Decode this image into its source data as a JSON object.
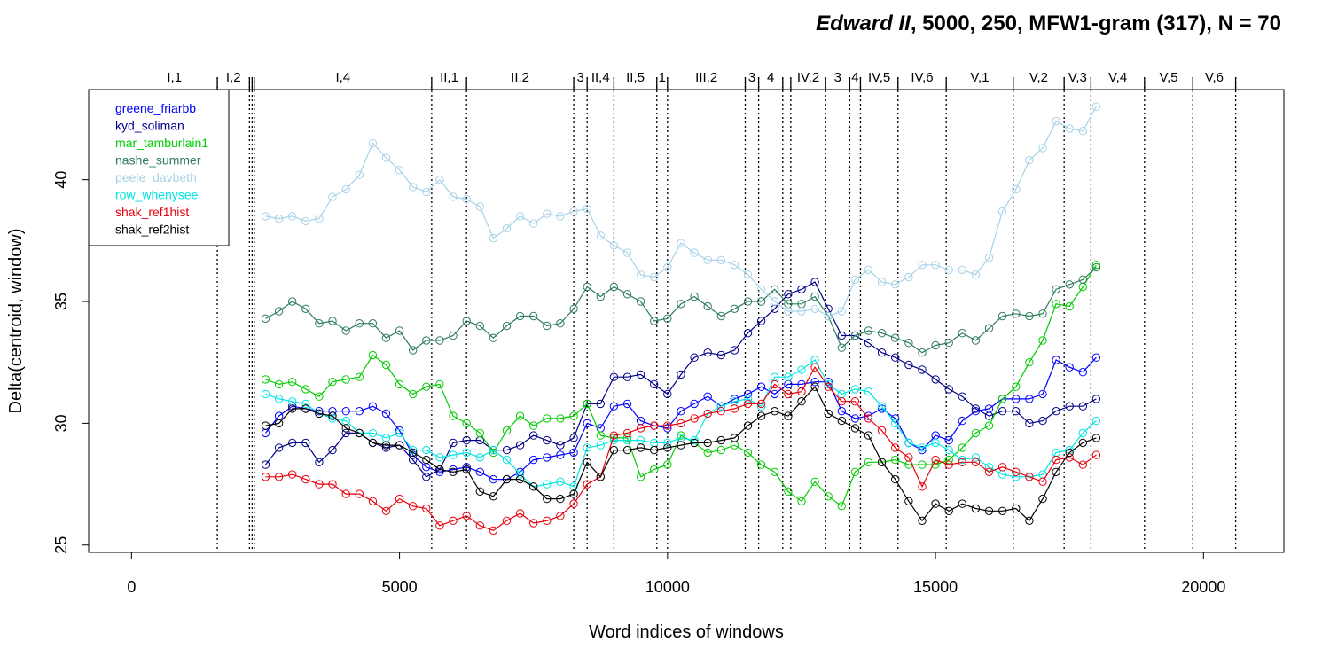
{
  "chart_data": {
    "type": "line",
    "title_italic": "Edward II",
    "title_rest": ", 5000, 250, MFW1-gram (317), N = 70",
    "xlabel": "Word indices of windows",
    "ylabel": "Delta(centroid, window)",
    "xlim": [
      -800,
      21500
    ],
    "ylim": [
      24.7,
      43.7
    ],
    "xticks": [
      0,
      5000,
      10000,
      15000,
      20000
    ],
    "yticks": [
      25,
      30,
      35,
      40
    ],
    "legend_position": "top-left",
    "scenes": [
      {
        "label": "I,1",
        "start": 0,
        "end": 1600
      },
      {
        "label": "I,2",
        "start": 1600,
        "end": 2200
      },
      {
        "label": "",
        "start": 2200,
        "end": 2250
      },
      {
        "label": "",
        "start": 2250,
        "end": 2290
      },
      {
        "label": "I,4",
        "start": 2290,
        "end": 5600
      },
      {
        "label": "II,1",
        "start": 5600,
        "end": 6250
      },
      {
        "label": "II,2",
        "start": 6250,
        "end": 8250
      },
      {
        "label": "3",
        "start": 8250,
        "end": 8500
      },
      {
        "label": "II,4",
        "start": 8500,
        "end": 9000
      },
      {
        "label": "II,5",
        "start": 9000,
        "end": 9800
      },
      {
        "label": "1",
        "start": 9800,
        "end": 10000
      },
      {
        "label": "III,2",
        "start": 10000,
        "end": 11450
      },
      {
        "label": "3",
        "start": 11450,
        "end": 11700
      },
      {
        "label": "4",
        "start": 11700,
        "end": 12150
      },
      {
        "label": "",
        "start": 12150,
        "end": 12300
      },
      {
        "label": "IV,2",
        "start": 12300,
        "end": 12950
      },
      {
        "label": "3",
        "start": 12950,
        "end": 13400
      },
      {
        "label": "4",
        "start": 13400,
        "end": 13600
      },
      {
        "label": "IV,5",
        "start": 13600,
        "end": 14300
      },
      {
        "label": "IV,6",
        "start": 14300,
        "end": 15200
      },
      {
        "label": "V,1",
        "start": 15200,
        "end": 16450
      },
      {
        "label": "V,2",
        "start": 16450,
        "end": 17400
      },
      {
        "label": "V,3",
        "start": 17400,
        "end": 17900
      },
      {
        "label": "V,4",
        "start": 17900,
        "end": 18900
      },
      {
        "label": "V,5",
        "start": 18900,
        "end": 19800
      },
      {
        "label": "V,6",
        "start": 19800,
        "end": 20600
      }
    ],
    "x": [
      2500,
      2750,
      3000,
      3250,
      3500,
      3750,
      4000,
      4250,
      4500,
      4750,
      5000,
      5250,
      5500,
      5750,
      6000,
      6250,
      6500,
      6750,
      7000,
      7250,
      7500,
      7750,
      8000,
      8250,
      8500,
      8750,
      9000,
      9250,
      9500,
      9750,
      10000,
      10250,
      10500,
      10750,
      11000,
      11250,
      11500,
      11750,
      12000,
      12250,
      12500,
      12750,
      13000,
      13250,
      13500,
      13750,
      14000,
      14250,
      14500,
      14750,
      15000,
      15250,
      15500,
      15750,
      16000,
      16250,
      16500,
      16750,
      17000,
      17250,
      17500,
      17750,
      18000
    ],
    "series": [
      {
        "name": "greene_friarbb",
        "color": "#0000FF",
        "values": [
          29.6,
          30.3,
          30.7,
          30.6,
          30.5,
          30.5,
          30.5,
          30.5,
          30.7,
          30.4,
          29.7,
          28.7,
          28.2,
          28.0,
          28.1,
          28.2,
          28.0,
          27.7,
          27.7,
          28.0,
          28.5,
          28.6,
          28.7,
          28.8,
          30.0,
          29.8,
          30.7,
          30.8,
          30.1,
          29.9,
          29.8,
          30.5,
          30.8,
          31.1,
          30.7,
          31.0,
          31.2,
          31.5,
          31.2,
          31.6,
          31.6,
          31.7,
          31.7,
          30.5,
          30.2,
          30.3,
          30.6,
          30.2,
          29.2,
          28.9,
          29.5,
          29.3,
          30.1,
          30.5,
          30.6,
          31.0,
          31.0,
          31.0,
          31.2,
          32.6,
          32.3,
          32.1,
          32.7
        ]
      },
      {
        "name": "kyd_soliman",
        "color": "#00008B",
        "values": [
          28.3,
          29.0,
          29.2,
          29.2,
          28.4,
          28.9,
          29.6,
          29.6,
          29.2,
          29.0,
          29.1,
          28.5,
          27.8,
          28.1,
          29.2,
          29.3,
          29.3,
          28.9,
          28.9,
          29.1,
          29.5,
          29.3,
          29.1,
          29.4,
          30.8,
          30.8,
          31.9,
          31.9,
          32.0,
          31.6,
          31.2,
          32.0,
          32.7,
          32.9,
          32.8,
          33.0,
          33.7,
          34.2,
          34.7,
          35.3,
          35.5,
          35.8,
          34.7,
          33.6,
          33.6,
          33.3,
          32.9,
          32.7,
          32.4,
          32.2,
          31.8,
          31.4,
          31.1,
          30.6,
          30.3,
          30.5,
          30.5,
          30.0,
          30.1,
          30.5,
          30.7,
          30.7,
          31.0
        ]
      },
      {
        "name": "mar_tamburlain1",
        "color": "#00CC00",
        "values": [
          31.8,
          31.6,
          31.7,
          31.4,
          31.1,
          31.7,
          31.8,
          31.9,
          32.8,
          32.4,
          31.6,
          31.2,
          31.5,
          31.6,
          30.3,
          30.0,
          29.6,
          28.8,
          29.7,
          30.3,
          29.9,
          30.2,
          30.2,
          30.3,
          30.8,
          29.5,
          29.4,
          29.4,
          27.8,
          28.1,
          28.3,
          29.5,
          29.2,
          28.8,
          28.9,
          29.1,
          28.8,
          28.3,
          28.0,
          27.2,
          26.8,
          27.6,
          27.0,
          26.6,
          28.0,
          28.4,
          28.4,
          28.5,
          28.3,
          28.3,
          28.3,
          28.5,
          29.0,
          29.6,
          29.9,
          31.0,
          31.5,
          32.5,
          33.4,
          34.9,
          34.8,
          35.6,
          36.5
        ]
      },
      {
        "name": "nashe_summer",
        "color": "#2E7D5B",
        "values": [
          34.3,
          34.6,
          35.0,
          34.7,
          34.1,
          34.2,
          33.8,
          34.1,
          34.1,
          33.5,
          33.8,
          33.0,
          33.4,
          33.4,
          33.6,
          34.2,
          34.0,
          33.5,
          34.0,
          34.4,
          34.4,
          34.0,
          34.1,
          34.7,
          35.6,
          35.2,
          35.6,
          35.3,
          35.0,
          34.2,
          34.3,
          34.9,
          35.2,
          34.8,
          34.4,
          34.7,
          35.0,
          35.0,
          35.5,
          34.9,
          34.9,
          35.2,
          34.4,
          33.1,
          33.6,
          33.8,
          33.7,
          33.5,
          33.3,
          32.9,
          33.2,
          33.3,
          33.7,
          33.4,
          33.9,
          34.4,
          34.5,
          34.4,
          34.5,
          35.5,
          35.7,
          35.9,
          36.4
        ]
      },
      {
        "name": "peele_davbeth",
        "color": "#A8D2E8",
        "values": [
          38.5,
          38.4,
          38.5,
          38.3,
          38.4,
          39.3,
          39.6,
          40.2,
          41.5,
          40.9,
          40.4,
          39.7,
          39.5,
          40.0,
          39.3,
          39.2,
          38.9,
          37.6,
          38.0,
          38.5,
          38.2,
          38.6,
          38.5,
          38.7,
          38.8,
          37.7,
          37.3,
          37.0,
          36.1,
          36.0,
          36.4,
          37.4,
          37.0,
          36.7,
          36.7,
          36.5,
          36.1,
          35.5,
          35.0,
          34.6,
          34.6,
          34.7,
          34.4,
          34.6,
          35.9,
          36.3,
          35.8,
          35.7,
          36.0,
          36.5,
          36.5,
          36.3,
          36.3,
          36.1,
          36.8,
          38.7,
          39.6,
          40.8,
          41.3,
          42.4,
          42.1,
          42.0,
          43.0
        ]
      },
      {
        "name": "row_whenysee",
        "color": "#00E5E5",
        "values": [
          31.2,
          31.0,
          30.9,
          30.8,
          30.4,
          30.2,
          30.1,
          29.6,
          29.6,
          29.4,
          29.6,
          28.9,
          28.9,
          28.6,
          28.7,
          28.8,
          28.6,
          28.9,
          28.5,
          27.9,
          27.4,
          27.5,
          27.6,
          27.4,
          29.0,
          29.1,
          29.3,
          29.3,
          29.3,
          29.2,
          29.2,
          29.4,
          29.3,
          30.4,
          30.7,
          30.9,
          31.0,
          30.7,
          31.9,
          31.9,
          32.2,
          32.6,
          31.6,
          31.2,
          31.4,
          31.3,
          30.7,
          30.0,
          29.2,
          29.0,
          29.2,
          28.9,
          28.5,
          28.6,
          28.2,
          27.9,
          27.8,
          27.8,
          27.9,
          28.8,
          28.9,
          29.6,
          30.1
        ]
      },
      {
        "name": "shak_ref1hist",
        "color": "#E8000B",
        "values": [
          27.8,
          27.8,
          27.9,
          27.7,
          27.5,
          27.5,
          27.1,
          27.1,
          26.8,
          26.4,
          26.9,
          26.6,
          26.5,
          25.8,
          26.0,
          26.2,
          25.8,
          25.6,
          26.0,
          26.3,
          25.9,
          26.0,
          26.2,
          26.7,
          27.5,
          27.8,
          29.5,
          29.6,
          29.8,
          29.9,
          29.9,
          30.0,
          30.2,
          30.4,
          30.5,
          30.6,
          30.8,
          30.8,
          31.6,
          31.2,
          31.3,
          32.3,
          31.5,
          30.9,
          30.9,
          30.2,
          29.7,
          29.0,
          28.6,
          27.4,
          28.5,
          28.3,
          28.4,
          28.4,
          28.0,
          28.2,
          28.0,
          27.8,
          27.6,
          28.5,
          28.6,
          28.3,
          28.7
        ]
      },
      {
        "name": "shak_ref2hist",
        "color": "#000000",
        "values": [
          29.9,
          30.0,
          30.6,
          30.6,
          30.4,
          30.3,
          29.8,
          29.6,
          29.2,
          29.1,
          29.1,
          28.8,
          28.5,
          28.1,
          28.0,
          28.1,
          27.2,
          27.0,
          27.7,
          27.7,
          27.4,
          26.9,
          26.9,
          27.1,
          28.4,
          27.8,
          28.9,
          28.9,
          29.0,
          28.9,
          29.0,
          29.1,
          29.2,
          29.2,
          29.3,
          29.4,
          29.9,
          30.3,
          30.5,
          30.3,
          30.9,
          31.5,
          30.4,
          30.1,
          29.8,
          29.5,
          28.4,
          27.7,
          26.8,
          26.0,
          26.7,
          26.4,
          26.7,
          26.5,
          26.4,
          26.4,
          26.5,
          26.0,
          26.9,
          28.0,
          28.8,
          29.2,
          29.4
        ]
      }
    ]
  }
}
